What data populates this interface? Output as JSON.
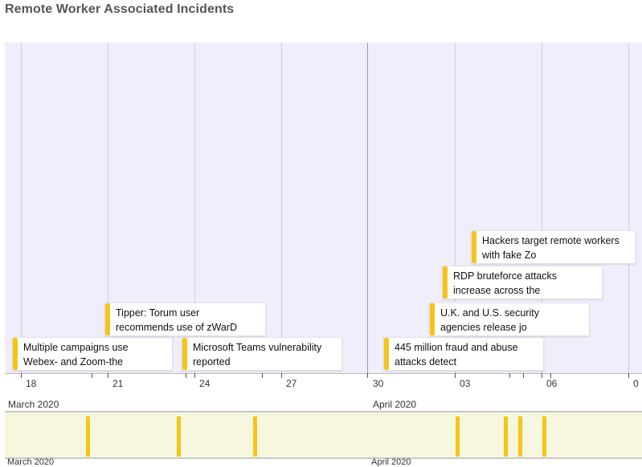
{
  "title": "Remote Worker Associated Incidents",
  "colors": {
    "event_bar": "#f5c518",
    "timeline_bg": "#f1eefb",
    "overview_bg": "#f6f7de"
  },
  "events": [
    {
      "line1": "Multiple campaigns use",
      "line2": "Webex- and Zoom-the"
    },
    {
      "line1": "Tipper: Torum user",
      "line2": "recommends use of zWarD"
    },
    {
      "line1": "Microsoft Teams vulnerability",
      "line2": "reported"
    },
    {
      "line1": "445 million fraud and abuse",
      "line2": "attacks detect"
    },
    {
      "line1": "U.K. and U.S. security",
      "line2": "agencies release jo"
    },
    {
      "line1": "RDP bruteforce attacks",
      "line2": "increase across the"
    },
    {
      "line1": "Hackers target remote workers",
      "line2": "with fake Zo"
    }
  ],
  "axis": {
    "ticks": [
      "18",
      "21",
      "24",
      "27",
      "30",
      "03",
      "06",
      "0"
    ],
    "months": [
      "March 2020",
      "April 2020"
    ]
  },
  "overview": {
    "months": [
      "March 2020",
      "April 2020"
    ]
  }
}
